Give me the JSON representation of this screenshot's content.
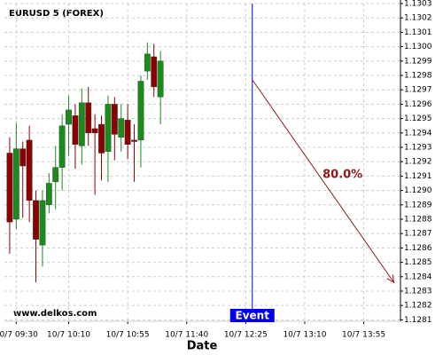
{
  "chart_data": {
    "type": "candlestick",
    "title": "EURUSD 5 (FOREX)",
    "watermark": "www.delkos.com",
    "x_label": "Date",
    "x": [
      "10/7 09:25",
      "10/7 09:30",
      "10/7 09:35",
      "10/7 09:40",
      "10/7 09:45",
      "10/7 09:50",
      "10/7 09:55",
      "10/7 10:00",
      "10/7 10:05",
      "10/7 10:10",
      "10/7 10:15",
      "10/7 10:20",
      "10/7 10:25",
      "10/7 10:30",
      "10/7 10:35",
      "10/7 10:40",
      "10/7 10:45",
      "10/7 10:50",
      "10/7 10:55",
      "10/7 11:00",
      "10/7 11:05",
      "10/7 11:10",
      "10/7 11:15",
      "10/7 11:20"
    ],
    "open": [
      1.12926,
      1.1288,
      1.12929,
      1.12935,
      1.12893,
      1.12862,
      1.1289,
      1.12906,
      1.12916,
      1.12946,
      1.12952,
      1.12931,
      1.12961,
      1.12943,
      1.12946,
      1.12927,
      1.1296,
      1.12937,
      1.12949,
      1.12935,
      1.12935,
      1.12983,
      1.12993,
      1.12965
    ],
    "high": [
      1.12937,
      1.12947,
      1.12934,
      1.12945,
      1.129,
      1.129,
      1.12912,
      1.12931,
      1.12953,
      1.12966,
      1.1296,
      1.12971,
      1.12972,
      1.12953,
      1.12952,
      1.12966,
      1.12965,
      1.1296,
      1.1296,
      1.12946,
      1.1298,
      1.13003,
      1.13002,
      1.12997
    ],
    "low": [
      1.12856,
      1.12873,
      1.12881,
      1.12878,
      1.12836,
      1.12847,
      1.12884,
      1.12887,
      1.129,
      1.12924,
      1.12915,
      1.12918,
      1.12931,
      1.12897,
      1.12907,
      1.12906,
      1.12921,
      1.12927,
      1.12922,
      1.12906,
      1.12916,
      1.12977,
      1.12965,
      1.12946
    ],
    "close": [
      1.12878,
      1.12929,
      1.12917,
      1.12893,
      1.12866,
      1.12893,
      1.12905,
      1.12916,
      1.12945,
      1.12956,
      1.12932,
      1.12961,
      1.1294,
      1.1294,
      1.12926,
      1.1296,
      1.12939,
      1.1295,
      1.12932,
      1.12934,
      1.12976,
      1.12995,
      1.12972,
      1.1299
    ],
    "up_color": "#1a8c1a",
    "down_color": "#8b0000",
    "xlim": [
      "10/7 09:21",
      "10/7 14:23"
    ],
    "xticks": [
      "10/7 09:30",
      "10/7 10:10",
      "10/7 10:55",
      "10/7 11:40",
      "10/7 12:25",
      "10/7 13:10",
      "10/7 13:55"
    ],
    "ylim": [
      1.12809,
      1.1303
    ],
    "yticks": [
      1.1281,
      1.1282,
      1.1283,
      1.1284,
      1.1285,
      1.1286,
      1.1287,
      1.1288,
      1.1289,
      {
        "value": 1.129,
        "label": "1.1290"
      },
      1.1291,
      1.1292,
      1.1293,
      1.1294,
      1.1295,
      1.1296,
      1.1297,
      1.1298,
      1.1299,
      {
        "value": 1.13,
        "label": "1.1300"
      },
      1.1301,
      1.1302,
      1.1303
    ],
    "grid": true,
    "event": {
      "label": "Event",
      "x": "10/7 12:30",
      "color": "#0000ee"
    },
    "forecast": {
      "x": [
        "10/7 12:30",
        "10/7 14:18"
      ],
      "values": [
        1.12977,
        1.12836
      ],
      "label": "80.0%",
      "color": "#8b1a1a"
    }
  }
}
